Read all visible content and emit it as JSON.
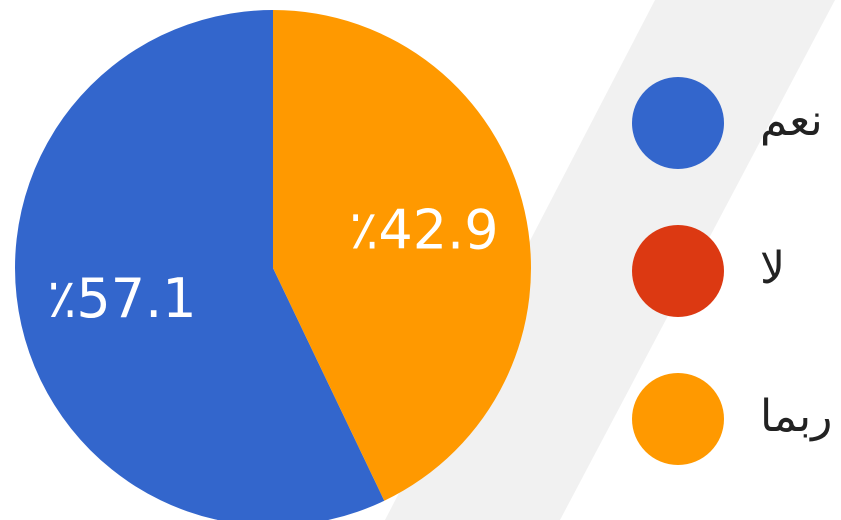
{
  "chart_data": {
    "type": "pie",
    "categories": [
      "نعم",
      "لا",
      "ربما"
    ],
    "values": [
      57.1,
      0,
      42.9
    ],
    "value_labels": [
      "٪57.1",
      null,
      "٪42.9"
    ],
    "colors": [
      "#3366cc",
      "#dc3912",
      "#ff9900"
    ],
    "legend": "right"
  }
}
